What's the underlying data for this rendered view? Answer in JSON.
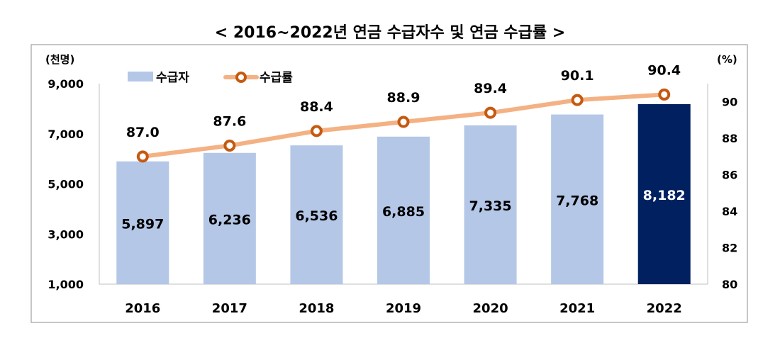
{
  "chart_data": {
    "type": "bar+line",
    "title": "< 2016~2022년 연금 수급자수 및 연금 수급률 >",
    "left_unit": "(천명)",
    "right_unit": "(%)",
    "categories": [
      "2016",
      "2017",
      "2018",
      "2019",
      "2020",
      "2021",
      "2022"
    ],
    "series": [
      {
        "name": "수급자",
        "type": "bar",
        "axis": "left",
        "values": [
          5897,
          6236,
          6536,
          6885,
          7335,
          7768,
          8182
        ],
        "labels": [
          "5,897",
          "6,236",
          "6,536",
          "6,885",
          "7,335",
          "7,768",
          "8,182"
        ],
        "color": "#b4c7e7",
        "highlight_color": "#002060",
        "highlight_index": 6
      },
      {
        "name": "수급률",
        "type": "line",
        "axis": "right",
        "values": [
          87.0,
          87.6,
          88.4,
          88.9,
          89.4,
          90.1,
          90.4
        ],
        "labels": [
          "87.0",
          "87.6",
          "88.4",
          "88.9",
          "89.4",
          "90.1",
          "90.4"
        ],
        "color": "#f4b183",
        "marker_color": "#c55a11"
      }
    ],
    "left_axis": {
      "min": 1000,
      "max": 9000,
      "ticks": [
        "1,000",
        "3,000",
        "5,000",
        "7,000",
        "9,000"
      ],
      "tick_values": [
        1000,
        3000,
        5000,
        7000,
        9000
      ]
    },
    "right_axis": {
      "min": 80,
      "max": 91,
      "ticks": [
        "80",
        "82",
        "84",
        "86",
        "88",
        "90"
      ],
      "tick_values": [
        80,
        82,
        84,
        86,
        88,
        90
      ]
    },
    "legend_position": "top-left",
    "grid": false
  }
}
